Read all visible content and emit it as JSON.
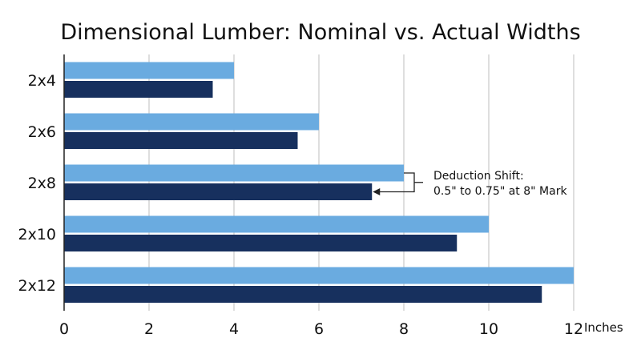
{
  "chart_data": {
    "type": "bar",
    "orientation": "horizontal",
    "title": "Dimensional Lumber: Nominal vs. Actual Widths",
    "categories": [
      "2x4",
      "2x6",
      "2x8",
      "2x10",
      "2x12"
    ],
    "series": [
      {
        "values": [
          4,
          6,
          8,
          10,
          12
        ],
        "color": "#6aabe0"
      },
      {
        "values": [
          3.5,
          5.5,
          7.25,
          9.25,
          11.25
        ],
        "color": "#17305e"
      }
    ],
    "xlim": [
      0,
      12
    ],
    "xticks": [
      "0",
      "2",
      "4",
      "6",
      "8",
      "10",
      "12"
    ],
    "xunit": "Inches",
    "grid": "vertical",
    "annotation": {
      "lines": [
        "Deduction Shift:",
        "0.5\" to 0.75\" at 8\" Mark"
      ],
      "category": "2x8"
    }
  }
}
